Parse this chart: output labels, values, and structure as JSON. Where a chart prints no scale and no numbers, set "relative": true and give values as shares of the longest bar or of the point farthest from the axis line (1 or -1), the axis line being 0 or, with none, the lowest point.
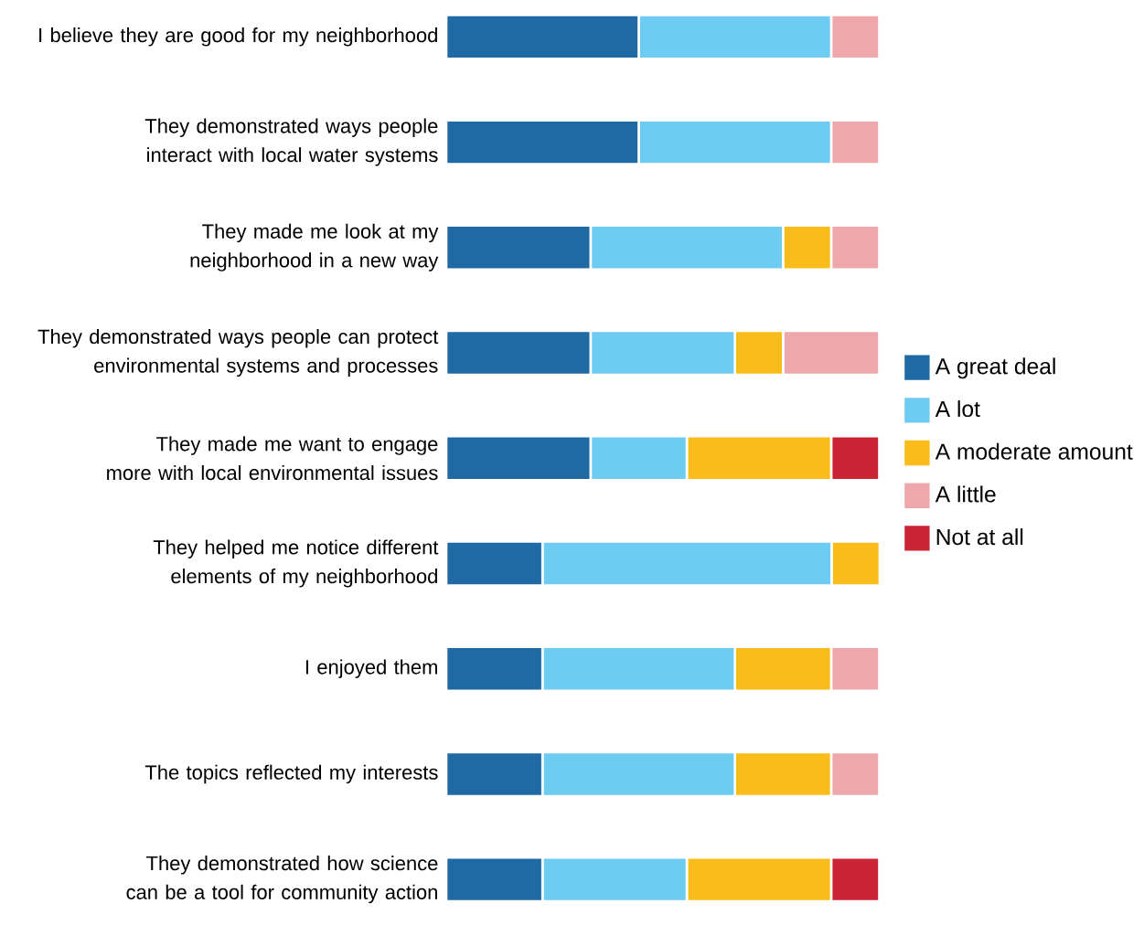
{
  "chart_data": {
    "type": "bar",
    "orientation": "horizontal",
    "stacked": true,
    "relative": true,
    "legend": "right",
    "categories": [
      "I believe they are good for my neighborhood",
      "They demonstrated ways people interact with local water systems",
      "They made me look at my neighborhood in a new way",
      "They demonstrated ways people can protect environmental systems and processes",
      "They made me want to engage more with local environmental issues",
      "They helped me notice different elements of my neighborhood",
      "I enjoyed them",
      "The topics reflected my interests",
      "They demonstrated how science can be a tool for community action"
    ],
    "series": [
      {
        "name": "A great deal",
        "color": "#1f6aa5",
        "values": [
          0.444,
          0.444,
          0.333,
          0.333,
          0.333,
          0.222,
          0.222,
          0.222,
          0.222
        ]
      },
      {
        "name": "A lot",
        "color": "#6ecbf2",
        "values": [
          0.444,
          0.444,
          0.444,
          0.333,
          0.222,
          0.667,
          0.444,
          0.444,
          0.333
        ]
      },
      {
        "name": "A moderate amount",
        "color": "#f9bc1a",
        "values": [
          0,
          0,
          0.111,
          0.111,
          0.333,
          0.111,
          0.222,
          0.222,
          0.333
        ]
      },
      {
        "name": "A little",
        "color": "#eea8ab",
        "values": [
          0.111,
          0.111,
          0.111,
          0.222,
          0,
          0,
          0.111,
          0.111,
          0
        ]
      },
      {
        "name": "Not at all",
        "color": "#cb2535",
        "values": [
          0,
          0,
          0,
          0,
          0.111,
          0,
          0,
          0,
          0.111
        ]
      }
    ]
  }
}
